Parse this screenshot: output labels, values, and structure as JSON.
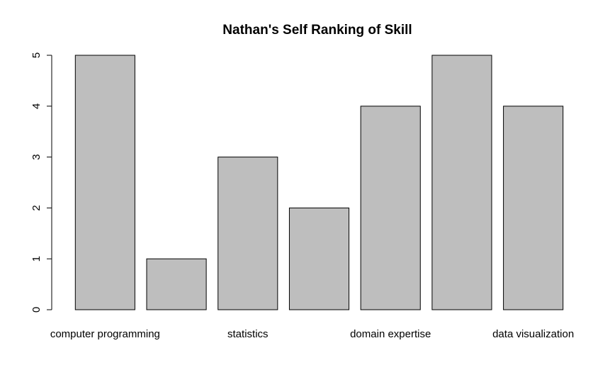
{
  "chart_data": {
    "type": "bar",
    "title": "Nathan's Self Ranking of Skill",
    "xlabel": "",
    "ylabel": "",
    "categories": [
      "computer programming",
      "",
      "statistics",
      "",
      "domain expertise",
      "",
      "data visualization"
    ],
    "values": [
      5,
      1,
      3,
      2,
      4,
      5,
      4
    ],
    "ylim": [
      0,
      5
    ],
    "yticks": [
      0,
      1,
      2,
      3,
      4,
      5
    ],
    "bar_color": "#bebebe",
    "bar_border_color": "#000000",
    "grid": false,
    "legend": "none"
  }
}
